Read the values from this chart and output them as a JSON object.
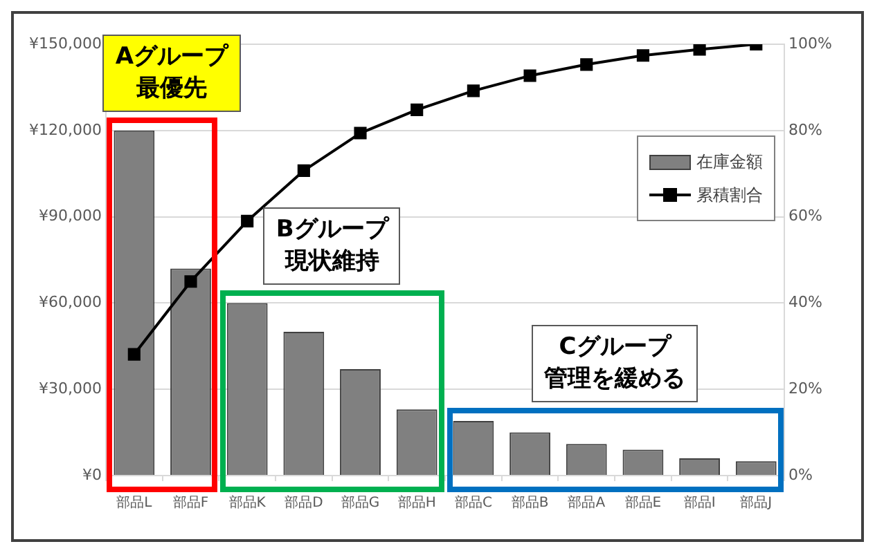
{
  "chart_data": {
    "type": "bar",
    "categories": [
      "部品L",
      "部品F",
      "部品K",
      "部品D",
      "部品G",
      "部品H",
      "部品C",
      "部品B",
      "部品A",
      "部品E",
      "部品I",
      "部品J"
    ],
    "series": [
      {
        "name": "在庫金額",
        "color": "#808080",
        "values": [
          120000,
          72000,
          60000,
          50000,
          37000,
          23000,
          19000,
          15000,
          11000,
          9000,
          6000,
          5000
        ]
      },
      {
        "name": "累積割合",
        "type": "line",
        "axis": "y2",
        "color": "#000000",
        "marker": "square",
        "values": [
          28.1,
          45,
          59,
          70.7,
          79.4,
          84.8,
          89.2,
          92.7,
          95.3,
          97.4,
          98.8,
          100
        ]
      }
    ],
    "ylim": [
      0,
      150000
    ],
    "yticks": [
      {
        "value": 0,
        "label": "¥0"
      },
      {
        "value": 30000,
        "label": "¥30,000"
      },
      {
        "value": 60000,
        "label": "¥60,000"
      },
      {
        "value": 90000,
        "label": "¥90,000"
      },
      {
        "value": 120000,
        "label": "¥120,000"
      },
      {
        "value": 150000,
        "label": "¥150,000"
      }
    ],
    "y2lim": [
      0,
      100
    ],
    "y2ticks": [
      {
        "value": 0,
        "label": "0%"
      },
      {
        "value": 20,
        "label": "20%"
      },
      {
        "value": 40,
        "label": "40%"
      },
      {
        "value": 60,
        "label": "60%"
      },
      {
        "value": 80,
        "label": "80%"
      },
      {
        "value": 100,
        "label": "100%"
      }
    ],
    "annotations": [
      "Aグループ",
      "最優先",
      "Bグループ",
      "現状維持",
      "Cグループ",
      "管理を緩める"
    ],
    "grid": "y",
    "legend": "top right"
  }
}
